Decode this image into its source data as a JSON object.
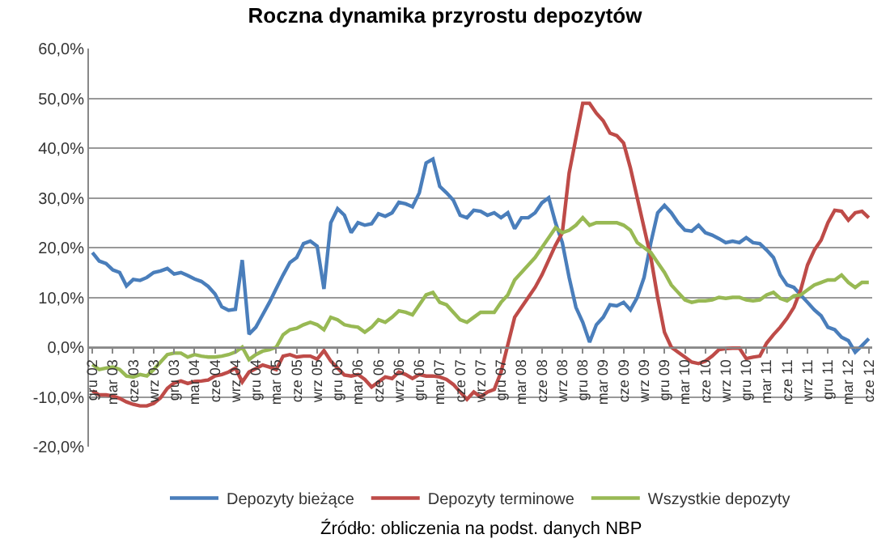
{
  "chart_data": {
    "type": "line",
    "title": "Roczna dynamika przyrostu depozytów",
    "categories": [
      "gru 02",
      null,
      null,
      "mar 03",
      null,
      null,
      "cze 03",
      null,
      null,
      "wrz 03",
      null,
      null,
      "gru 03",
      null,
      null,
      "mar 04",
      null,
      null,
      "cze 04",
      null,
      null,
      "wrz 04",
      null,
      null,
      "gru 04",
      null,
      null,
      "mar 05",
      null,
      null,
      "cze 05",
      null,
      null,
      "wrz 05",
      null,
      null,
      "gru 05",
      null,
      null,
      "mar 06",
      null,
      null,
      "cze 06",
      null,
      null,
      "wrz 06",
      null,
      null,
      "gru 06",
      null,
      null,
      "mar 07",
      null,
      null,
      "cze 07",
      null,
      null,
      "wrz 07",
      null,
      null,
      "gru 07",
      null,
      null,
      "mar 08",
      null,
      null,
      "cze 08",
      null,
      null,
      "wrz 08",
      null,
      null,
      "gru 08",
      null,
      null,
      "mar 09",
      null,
      null,
      "cze 09",
      null,
      null,
      "wrz 09",
      null,
      null,
      "gru 09",
      null,
      null,
      "mar 10",
      null,
      null,
      "cze 10",
      null,
      null,
      "wrz 10",
      null,
      null,
      "gru 10",
      null,
      null,
      "mar 11",
      null,
      null,
      "cze 11",
      null,
      null,
      "wrz 11",
      null,
      null,
      "gru 11",
      null,
      null,
      "mar 12",
      null,
      null,
      "cze 12"
    ],
    "series": [
      {
        "name": "Depozyty bieżące",
        "color": "#4a7ebb",
        "values": [
          19,
          17.3,
          16.8,
          15.5,
          15,
          12.3,
          13.6,
          13.4,
          14,
          15,
          15.3,
          15.8,
          14.7,
          15,
          14.4,
          13.7,
          13.2,
          12.2,
          10.7,
          8.1,
          7.4,
          7.6,
          17.5,
          2.6,
          4,
          6.5,
          9,
          11.8,
          14.5,
          17,
          18,
          20.8,
          21.3,
          20.3,
          11.7,
          25,
          27.8,
          26.5,
          23,
          25,
          24.5,
          24.8,
          26.8,
          26.3,
          27,
          29.1,
          28.8,
          28.2,
          31,
          37,
          37.8,
          32.3,
          31,
          29.5,
          26.5,
          26,
          27.5,
          27.3,
          26.5,
          27,
          26,
          27,
          23.8,
          26,
          26,
          27,
          29,
          30,
          25,
          21,
          14,
          8,
          5,
          1,
          4.5,
          6,
          8.5,
          8.3,
          9,
          7.5,
          10,
          14,
          21,
          27,
          28.5,
          27,
          25,
          23.5,
          23.3,
          24.5,
          23,
          22.5,
          21.8,
          21,
          21.3,
          21,
          22,
          21,
          20.8,
          19.5,
          18,
          14.5,
          12.5,
          12,
          10.5,
          9,
          7.5,
          6.3,
          4,
          3.5,
          2,
          1.3,
          -1,
          0.3,
          1.7
        ]
      },
      {
        "name": "Depozyty terminowe",
        "color": "#be4b48",
        "values": [
          -8.8,
          -9.6,
          -9.6,
          -9.8,
          -10.3,
          -11,
          -11.5,
          -11.8,
          -11.8,
          -11.3,
          -10.2,
          -8.3,
          -7.2,
          -6.8,
          -7.3,
          -6.9,
          -6.8,
          -6.6,
          -5.8,
          -5.5,
          -5,
          -4.2,
          -7,
          -5,
          -4.3,
          -3.6,
          -4,
          -4.5,
          -1.8,
          -1.5,
          -2,
          -1.8,
          -1.8,
          -2.4,
          -0.7,
          -2.8,
          -4.2,
          -5.6,
          -5.8,
          -5.5,
          -6.5,
          -8,
          -7,
          -6,
          -6.3,
          -5,
          -5.5,
          -6.3,
          -5.5,
          -5.8,
          -5.8,
          -6,
          -6.5,
          -7.5,
          -9,
          -10.5,
          -9,
          -10,
          -9,
          -8.5,
          -5,
          0.5,
          6,
          8,
          10,
          12,
          14.5,
          17.5,
          20.5,
          23,
          35,
          42,
          49,
          49,
          47,
          45.5,
          43,
          42.5,
          41,
          36,
          30,
          24,
          18,
          10,
          3,
          0,
          -1,
          -2,
          -3,
          -3.3,
          -2.8,
          -1.8,
          -0.5,
          -0.3,
          -0.2,
          -0.2,
          -2.3,
          -2,
          -1.8,
          0.8,
          2.5,
          4,
          5.8,
          8,
          11.5,
          16.5,
          19.5,
          21.5,
          25,
          27.5,
          27.3,
          25.5,
          27,
          27.3,
          26
        ]
      },
      {
        "name": "Wszystkie depozyty",
        "color": "#98b954",
        "values": [
          -3.5,
          -4.5,
          -4.2,
          -4,
          -4.5,
          -5.8,
          -6,
          -5.5,
          -5.8,
          -4.5,
          -3,
          -1.5,
          -1.2,
          -1.2,
          -2,
          -1.5,
          -1.8,
          -2,
          -2,
          -1.8,
          -1.5,
          -1,
          0,
          -2.5,
          -1.5,
          -0.8,
          -0.5,
          0,
          2.5,
          3.5,
          3.8,
          4.5,
          5,
          4.5,
          3.5,
          6,
          5.5,
          4.5,
          4.2,
          4,
          3,
          4,
          5.5,
          5,
          6,
          7.3,
          7,
          6.5,
          8.5,
          10.5,
          11,
          9,
          8.5,
          7,
          5.5,
          5,
          6,
          7,
          7,
          7,
          9,
          10.5,
          13.5,
          15,
          16.5,
          18,
          20,
          22,
          24,
          23,
          23.5,
          24.5,
          26,
          24.5,
          25,
          25,
          25,
          25,
          24.5,
          23.5,
          21,
          20,
          19,
          17,
          15,
          12.5,
          11,
          9.5,
          9,
          9.3,
          9.3,
          9.5,
          10,
          9.8,
          10,
          10,
          9.5,
          9.3,
          9.5,
          10.5,
          11,
          9.8,
          9.3,
          10.3,
          10.5,
          11.5,
          12.5,
          13,
          13.5,
          13.5,
          14.5,
          13,
          12,
          13,
          13
        ]
      }
    ],
    "ylim": [
      -20,
      60
    ],
    "yticks": [
      {
        "value": -20,
        "label": "-20,0%"
      },
      {
        "value": -10,
        "label": "-10,0%"
      },
      {
        "value": 0,
        "label": "0,0%"
      },
      {
        "value": 10,
        "label": "10,0%"
      },
      {
        "value": 20,
        "label": "20,0%"
      },
      {
        "value": 30,
        "label": "30,0%"
      },
      {
        "value": 40,
        "label": "40,0%"
      },
      {
        "value": 50,
        "label": "50,0%"
      },
      {
        "value": 60,
        "label": "60,0%"
      }
    ],
    "grid": "y",
    "legend": "bottom",
    "marker": "none",
    "line_style": "solid",
    "annotations": [
      "Źródło: obliczenia na podst. danych NBP"
    ]
  }
}
